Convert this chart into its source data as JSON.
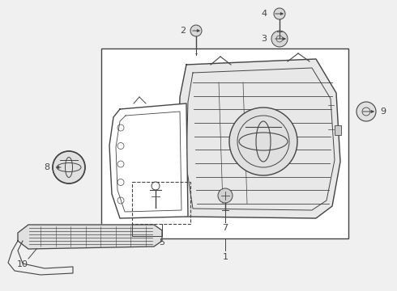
{
  "bg_color": "#f0f0f0",
  "line_color": "#444444",
  "white": "#ffffff"
}
